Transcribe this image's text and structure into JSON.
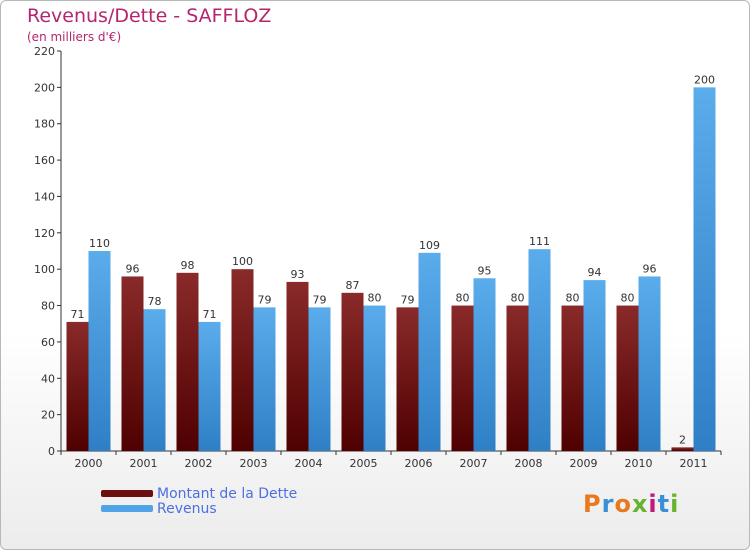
{
  "title": "Revenus/Dette - SAFFLOZ",
  "subtitle": "(en milliers d'€)",
  "logo_text": "Proxiti",
  "colors": {
    "debt": "#6b0f0f",
    "revenue": "#4fa3e6",
    "title": "#b5256e",
    "legend_text": "#4d6fe0"
  },
  "chart_data": {
    "type": "bar",
    "categories": [
      "2000",
      "2001",
      "2002",
      "2003",
      "2004",
      "2005",
      "2006",
      "2007",
      "2008",
      "2009",
      "2010",
      "2011"
    ],
    "series": [
      {
        "name": "Montant de la Dette",
        "values": [
          71,
          96,
          98,
          100,
          93,
          87,
          79,
          80,
          80,
          80,
          80,
          2
        ]
      },
      {
        "name": "Revenus",
        "values": [
          110,
          78,
          71,
          79,
          79,
          80,
          109,
          95,
          111,
          94,
          96,
          200
        ]
      }
    ],
    "ylim": [
      0,
      220
    ],
    "yticks": [
      0,
      20,
      40,
      60,
      80,
      100,
      120,
      140,
      160,
      180,
      200,
      220
    ],
    "grid": false,
    "legend": "bottom-left"
  }
}
